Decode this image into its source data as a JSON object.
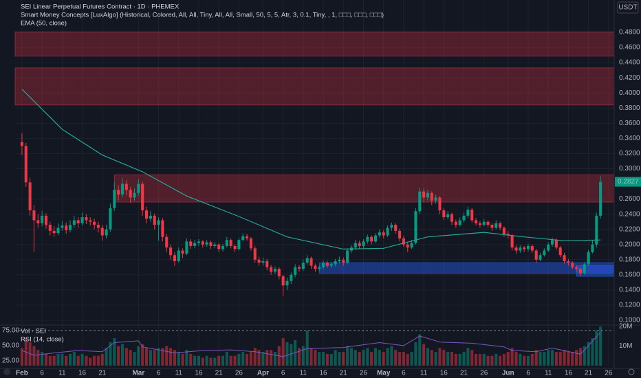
{
  "chart_data": {
    "type": "candlestick",
    "title": "SEI Linear Perpetual Futures Contract · 1D · PHEMEX",
    "indicators": [
      "Smart Money Concepts [LuxAlgo] (Historical, Colored, All, All, Tiny, All, All, Small, 50, 5, 5, Atr, 3, 0.1, Tiny, , 1, □□□, □□□, □□□)",
      "EMA (50, close)"
    ],
    "currency": "USDT",
    "last_price": 0.2827,
    "up_color": "#089981",
    "down_color": "#f23645",
    "ema_color": "#26a69a",
    "xlim": [
      -1.7,
      147.4
    ],
    "ylim": [
      0.0937,
      0.5226
    ],
    "yticks": [
      {
        "value": 0.1,
        "label": "0.1000"
      },
      {
        "value": 0.12,
        "label": "0.1200"
      },
      {
        "value": 0.14,
        "label": "0.1400"
      },
      {
        "value": 0.16,
        "label": "0.1600"
      },
      {
        "value": 0.18,
        "label": "0.1800"
      },
      {
        "value": 0.2,
        "label": "0.2000"
      },
      {
        "value": 0.22,
        "label": "0.2200"
      },
      {
        "value": 0.24,
        "label": "0.2400"
      },
      {
        "value": 0.26,
        "label": "0.2600"
      },
      {
        "value": 0.3,
        "label": "0.3000"
      },
      {
        "value": 0.32,
        "label": "0.3200"
      },
      {
        "value": 0.34,
        "label": "0.3400"
      },
      {
        "value": 0.36,
        "label": "0.3600"
      },
      {
        "value": 0.38,
        "label": "0.3800"
      },
      {
        "value": 0.4,
        "label": "0.4000"
      },
      {
        "value": 0.42,
        "label": "0.4200"
      },
      {
        "value": 0.44,
        "label": "0.4400"
      },
      {
        "value": 0.46,
        "label": "0.4600"
      },
      {
        "value": 0.48,
        "label": "0.4800"
      }
    ],
    "xticks": [
      {
        "value": 0,
        "label": "Feb"
      },
      {
        "value": 5,
        "label": "6"
      },
      {
        "value": 10,
        "label": "11"
      },
      {
        "value": 15,
        "label": "16"
      },
      {
        "value": 20,
        "label": "21"
      },
      {
        "value": 29,
        "label": "Mar"
      },
      {
        "value": 34,
        "label": "6"
      },
      {
        "value": 39,
        "label": "11"
      },
      {
        "value": 44,
        "label": "16"
      },
      {
        "value": 49,
        "label": "21"
      },
      {
        "value": 54,
        "label": "26"
      },
      {
        "value": 60,
        "label": "Apr"
      },
      {
        "value": 65,
        "label": "6"
      },
      {
        "value": 70,
        "label": "11"
      },
      {
        "value": 75,
        "label": "16"
      },
      {
        "value": 80,
        "label": "21"
      },
      {
        "value": 85,
        "label": "26"
      },
      {
        "value": 90,
        "label": "May"
      },
      {
        "value": 95,
        "label": "6"
      },
      {
        "value": 100,
        "label": "11"
      },
      {
        "value": 105,
        "label": "16"
      },
      {
        "value": 110,
        "label": "21"
      },
      {
        "value": 115,
        "label": "26"
      },
      {
        "value": 121,
        "label": "Jun"
      },
      {
        "value": 126,
        "label": "6"
      },
      {
        "value": 131,
        "label": "11"
      },
      {
        "value": 136,
        "label": "16"
      },
      {
        "value": 141,
        "label": "21"
      },
      {
        "value": 146,
        "label": "26"
      }
    ],
    "zones": [
      {
        "top": 0.4805,
        "bottom": 0.4485,
        "start": -1.7,
        "color": "red"
      },
      {
        "top": 0.433,
        "bottom": 0.384,
        "start": -1.7,
        "color": "red"
      },
      {
        "top": 0.292,
        "bottom": 0.256,
        "start": 23,
        "color": "red"
      },
      {
        "top": 0.176,
        "bottom": 0.162,
        "start": 74,
        "color": "blue"
      },
      {
        "top": 0.172,
        "bottom": 0.158,
        "start": 138,
        "color": "blue"
      }
    ],
    "candles": [
      [
        0.335,
        0.347,
        0.318,
        0.33
      ],
      [
        0.33,
        0.334,
        0.276,
        0.282
      ],
      [
        0.282,
        0.288,
        0.238,
        0.245
      ],
      [
        0.245,
        0.252,
        0.19,
        0.232
      ],
      [
        0.232,
        0.24,
        0.222,
        0.228
      ],
      [
        0.228,
        0.244,
        0.224,
        0.238
      ],
      [
        0.238,
        0.241,
        0.221,
        0.226
      ],
      [
        0.226,
        0.23,
        0.212,
        0.218
      ],
      [
        0.218,
        0.224,
        0.21,
        0.215
      ],
      [
        0.215,
        0.228,
        0.212,
        0.222
      ],
      [
        0.222,
        0.231,
        0.218,
        0.225
      ],
      [
        0.225,
        0.229,
        0.214,
        0.219
      ],
      [
        0.219,
        0.232,
        0.216,
        0.226
      ],
      [
        0.226,
        0.238,
        0.222,
        0.232
      ],
      [
        0.232,
        0.236,
        0.222,
        0.228
      ],
      [
        0.228,
        0.242,
        0.225,
        0.236
      ],
      [
        0.236,
        0.24,
        0.227,
        0.232
      ],
      [
        0.232,
        0.236,
        0.225,
        0.23
      ],
      [
        0.23,
        0.234,
        0.22,
        0.226
      ],
      [
        0.226,
        0.23,
        0.216,
        0.222
      ],
      [
        0.222,
        0.226,
        0.205,
        0.212
      ],
      [
        0.212,
        0.226,
        0.208,
        0.22
      ],
      [
        0.22,
        0.254,
        0.217,
        0.248
      ],
      [
        0.248,
        0.282,
        0.244,
        0.272
      ],
      [
        0.272,
        0.278,
        0.258,
        0.266
      ],
      [
        0.266,
        0.288,
        0.262,
        0.28
      ],
      [
        0.28,
        0.285,
        0.265,
        0.272
      ],
      [
        0.272,
        0.276,
        0.255,
        0.262
      ],
      [
        0.262,
        0.274,
        0.258,
        0.268
      ],
      [
        0.268,
        0.286,
        0.264,
        0.28
      ],
      [
        0.28,
        0.283,
        0.238,
        0.245
      ],
      [
        0.245,
        0.25,
        0.228,
        0.234
      ],
      [
        0.234,
        0.244,
        0.23,
        0.238
      ],
      [
        0.238,
        0.241,
        0.22,
        0.226
      ],
      [
        0.226,
        0.236,
        0.205,
        0.232
      ],
      [
        0.232,
        0.235,
        0.204,
        0.21
      ],
      [
        0.21,
        0.214,
        0.19,
        0.196
      ],
      [
        0.196,
        0.2,
        0.18,
        0.186
      ],
      [
        0.186,
        0.19,
        0.172,
        0.178
      ],
      [
        0.178,
        0.196,
        0.176,
        0.192
      ],
      [
        0.192,
        0.195,
        0.182,
        0.188
      ],
      [
        0.188,
        0.208,
        0.186,
        0.204
      ],
      [
        0.204,
        0.207,
        0.194,
        0.198
      ],
      [
        0.198,
        0.206,
        0.195,
        0.202
      ],
      [
        0.202,
        0.207,
        0.198,
        0.204
      ],
      [
        0.204,
        0.206,
        0.196,
        0.2
      ],
      [
        0.2,
        0.206,
        0.197,
        0.203
      ],
      [
        0.203,
        0.205,
        0.194,
        0.198
      ],
      [
        0.198,
        0.203,
        0.195,
        0.2
      ],
      [
        0.2,
        0.202,
        0.19,
        0.194
      ],
      [
        0.194,
        0.201,
        0.191,
        0.198
      ],
      [
        0.198,
        0.21,
        0.196,
        0.206
      ],
      [
        0.206,
        0.208,
        0.195,
        0.198
      ],
      [
        0.198,
        0.2,
        0.19,
        0.194
      ],
      [
        0.194,
        0.209,
        0.192,
        0.206
      ],
      [
        0.206,
        0.215,
        0.204,
        0.211
      ],
      [
        0.211,
        0.214,
        0.205,
        0.208
      ],
      [
        0.208,
        0.21,
        0.192,
        0.195
      ],
      [
        0.195,
        0.198,
        0.176,
        0.18
      ],
      [
        0.18,
        0.184,
        0.172,
        0.176
      ],
      [
        0.176,
        0.183,
        0.172,
        0.178
      ],
      [
        0.178,
        0.181,
        0.166,
        0.17
      ],
      [
        0.17,
        0.173,
        0.16,
        0.164
      ],
      [
        0.164,
        0.171,
        0.161,
        0.168
      ],
      [
        0.168,
        0.17,
        0.154,
        0.158
      ],
      [
        0.158,
        0.16,
        0.132,
        0.146
      ],
      [
        0.146,
        0.156,
        0.14,
        0.152
      ],
      [
        0.152,
        0.163,
        0.148,
        0.16
      ],
      [
        0.16,
        0.174,
        0.157,
        0.17
      ],
      [
        0.17,
        0.173,
        0.164,
        0.168
      ],
      [
        0.168,
        0.18,
        0.165,
        0.176
      ],
      [
        0.176,
        0.186,
        0.173,
        0.182
      ],
      [
        0.182,
        0.184,
        0.168,
        0.172
      ],
      [
        0.172,
        0.175,
        0.164,
        0.168
      ],
      [
        0.168,
        0.173,
        0.165,
        0.17
      ],
      [
        0.17,
        0.179,
        0.167,
        0.176
      ],
      [
        0.176,
        0.178,
        0.169,
        0.172
      ],
      [
        0.172,
        0.177,
        0.169,
        0.174
      ],
      [
        0.174,
        0.181,
        0.171,
        0.178
      ],
      [
        0.178,
        0.184,
        0.175,
        0.18
      ],
      [
        0.18,
        0.183,
        0.172,
        0.176
      ],
      [
        0.176,
        0.195,
        0.174,
        0.192
      ],
      [
        0.192,
        0.199,
        0.189,
        0.196
      ],
      [
        0.196,
        0.206,
        0.193,
        0.202
      ],
      [
        0.202,
        0.205,
        0.194,
        0.198
      ],
      [
        0.198,
        0.207,
        0.195,
        0.204
      ],
      [
        0.204,
        0.213,
        0.201,
        0.21
      ],
      [
        0.21,
        0.212,
        0.2,
        0.204
      ],
      [
        0.204,
        0.215,
        0.202,
        0.212
      ],
      [
        0.212,
        0.22,
        0.209,
        0.216
      ],
      [
        0.216,
        0.219,
        0.208,
        0.212
      ],
      [
        0.212,
        0.225,
        0.21,
        0.222
      ],
      [
        0.222,
        0.229,
        0.218,
        0.226
      ],
      [
        0.226,
        0.228,
        0.214,
        0.218
      ],
      [
        0.218,
        0.221,
        0.204,
        0.208
      ],
      [
        0.208,
        0.211,
        0.197,
        0.2
      ],
      [
        0.2,
        0.203,
        0.19,
        0.196
      ],
      [
        0.196,
        0.206,
        0.194,
        0.202
      ],
      [
        0.202,
        0.248,
        0.2,
        0.244
      ],
      [
        0.244,
        0.275,
        0.24,
        0.27
      ],
      [
        0.27,
        0.274,
        0.256,
        0.262
      ],
      [
        0.262,
        0.272,
        0.258,
        0.268
      ],
      [
        0.268,
        0.27,
        0.252,
        0.258
      ],
      [
        0.258,
        0.266,
        0.254,
        0.262
      ],
      [
        0.262,
        0.264,
        0.24,
        0.245
      ],
      [
        0.245,
        0.248,
        0.232,
        0.236
      ],
      [
        0.236,
        0.244,
        0.233,
        0.24
      ],
      [
        0.24,
        0.242,
        0.226,
        0.23
      ],
      [
        0.23,
        0.233,
        0.222,
        0.226
      ],
      [
        0.226,
        0.236,
        0.224,
        0.232
      ],
      [
        0.232,
        0.242,
        0.229,
        0.238
      ],
      [
        0.238,
        0.25,
        0.235,
        0.246
      ],
      [
        0.246,
        0.248,
        0.229,
        0.232
      ],
      [
        0.232,
        0.235,
        0.225,
        0.228
      ],
      [
        0.228,
        0.231,
        0.222,
        0.226
      ],
      [
        0.226,
        0.234,
        0.224,
        0.23
      ],
      [
        0.23,
        0.232,
        0.223,
        0.226
      ],
      [
        0.226,
        0.228,
        0.218,
        0.222
      ],
      [
        0.222,
        0.232,
        0.22,
        0.228
      ],
      [
        0.228,
        0.23,
        0.219,
        0.222
      ],
      [
        0.222,
        0.224,
        0.21,
        0.214
      ],
      [
        0.214,
        0.218,
        0.208,
        0.212
      ],
      [
        0.212,
        0.214,
        0.192,
        0.196
      ],
      [
        0.196,
        0.199,
        0.188,
        0.192
      ],
      [
        0.192,
        0.199,
        0.189,
        0.196
      ],
      [
        0.196,
        0.198,
        0.19,
        0.194
      ],
      [
        0.194,
        0.201,
        0.191,
        0.198
      ],
      [
        0.198,
        0.2,
        0.189,
        0.192
      ],
      [
        0.192,
        0.194,
        0.176,
        0.18
      ],
      [
        0.18,
        0.189,
        0.178,
        0.186
      ],
      [
        0.186,
        0.195,
        0.184,
        0.192
      ],
      [
        0.192,
        0.203,
        0.19,
        0.2
      ],
      [
        0.2,
        0.209,
        0.197,
        0.206
      ],
      [
        0.206,
        0.208,
        0.193,
        0.196
      ],
      [
        0.196,
        0.198,
        0.183,
        0.186
      ],
      [
        0.186,
        0.189,
        0.175,
        0.178
      ],
      [
        0.178,
        0.181,
        0.172,
        0.176
      ],
      [
        0.176,
        0.178,
        0.167,
        0.17
      ],
      [
        0.17,
        0.173,
        0.164,
        0.168
      ],
      [
        0.168,
        0.17,
        0.158,
        0.162
      ],
      [
        0.162,
        0.177,
        0.16,
        0.174
      ],
      [
        0.174,
        0.193,
        0.172,
        0.19
      ],
      [
        0.19,
        0.206,
        0.188,
        0.2
      ],
      [
        0.2,
        0.242,
        0.196,
        0.238
      ],
      [
        0.238,
        0.29,
        0.234,
        0.2827
      ]
    ],
    "ema": {
      "x": [
        0,
        10,
        20,
        30,
        41,
        54,
        66,
        80,
        90,
        101,
        115,
        125,
        135,
        144
      ],
      "values": [
        0.405,
        0.352,
        0.318,
        0.296,
        0.264,
        0.237,
        0.21,
        0.194,
        0.195,
        0.21,
        0.216,
        0.21,
        0.205,
        0.206
      ]
    },
    "volume": {
      "title": "Vol · SEI",
      "ylim": [
        0,
        20.7
      ],
      "yticks": [
        {
          "value": 10,
          "label": "10M"
        },
        {
          "value": 20,
          "label": "20M"
        }
      ],
      "values": [
        9,
        14,
        12,
        10,
        8,
        7,
        6,
        5,
        5,
        6,
        6,
        5,
        6,
        7,
        5,
        6,
        5,
        4,
        5,
        5,
        6,
        9,
        12,
        14,
        10,
        11,
        9,
        8,
        7,
        10,
        11,
        9,
        8,
        8,
        9,
        9,
        10,
        9,
        8,
        7,
        6,
        8,
        6,
        5,
        5,
        4,
        5,
        4,
        4,
        5,
        5,
        7,
        5,
        5,
        6,
        7,
        6,
        7,
        9,
        8,
        7,
        8,
        8,
        7,
        10,
        14,
        12,
        11,
        13,
        9,
        10,
        18,
        9,
        8,
        7,
        7,
        6,
        6,
        8,
        7,
        7,
        10,
        9,
        8,
        7,
        8,
        9,
        7,
        9,
        8,
        7,
        9,
        10,
        8,
        7,
        7,
        6,
        7,
        12,
        16,
        11,
        9,
        8,
        7,
        9,
        8,
        7,
        7,
        6,
        6,
        7,
        9,
        8,
        6,
        6,
        6,
        5,
        5,
        6,
        5,
        6,
        7,
        9,
        7,
        6,
        5,
        5,
        6,
        8,
        7,
        7,
        8,
        8,
        7,
        7,
        8,
        7,
        7,
        8,
        9,
        10,
        12,
        14,
        18,
        20
      ]
    },
    "rsi": {
      "title": "RSI (14, close)",
      "color": "#7e57c2",
      "ylim": [
        17,
        84
      ],
      "yticks": [
        {
          "value": 25,
          "label": "25.00"
        },
        {
          "value": 50,
          "label": "50.00"
        },
        {
          "value": 75,
          "label": "75.00"
        }
      ],
      "x": [
        0,
        3,
        8,
        14,
        20,
        23,
        29,
        30,
        38,
        45,
        52,
        58,
        65,
        71,
        80,
        89,
        95,
        99,
        104,
        112,
        120,
        122,
        128,
        132,
        139,
        141,
        144
      ],
      "values": [
        42,
        34,
        38,
        42,
        40,
        55,
        58,
        48,
        38,
        42,
        43,
        40,
        32,
        45,
        47,
        55,
        50,
        66,
        56,
        54,
        48,
        42,
        40,
        46,
        36,
        50,
        72
      ]
    }
  }
}
